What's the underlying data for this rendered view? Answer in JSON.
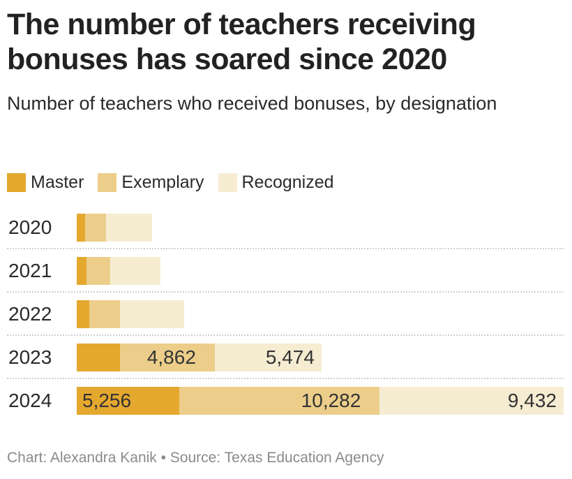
{
  "header": {
    "title": "The number of teachers receiving bonuses has soared since 2020",
    "subtitle": "Number of teachers who received bonuses, by designation"
  },
  "legend": [
    {
      "label": "Master",
      "color": "#e5a82e"
    },
    {
      "label": "Exemplary",
      "color": "#ecce8a"
    },
    {
      "label": "Recognized",
      "color": "#f5ecd2"
    }
  ],
  "footer": {
    "credit": "Chart: Alexandra Kanik • Source: Texas Education Agency"
  },
  "rows": [
    {
      "year": "2020",
      "labels": [
        "",
        "",
        ""
      ]
    },
    {
      "year": "2021",
      "labels": [
        "",
        "",
        ""
      ]
    },
    {
      "year": "2022",
      "labels": [
        "",
        "",
        ""
      ]
    },
    {
      "year": "2023",
      "labels": [
        "",
        "4,862",
        "5,474"
      ]
    },
    {
      "year": "2024",
      "labels": [
        "5,256",
        "10,282",
        "9,432"
      ]
    }
  ],
  "chart_data": {
    "type": "bar",
    "orientation": "horizontal",
    "stacked": true,
    "title": "The number of teachers receiving bonuses has soared since 2020",
    "subtitle": "Number of teachers who received bonuses, by designation",
    "categories": [
      "2020",
      "2021",
      "2022",
      "2023",
      "2024"
    ],
    "series": [
      {
        "name": "Master",
        "color": "#e5a82e",
        "values": [
          429,
          501,
          644,
          2218,
          5256
        ]
      },
      {
        "name": "Exemplary",
        "color": "#ecce8a",
        "values": [
          1073,
          1216,
          1574,
          4862,
          10282
        ]
      },
      {
        "name": "Recognized",
        "color": "#f5ecd2",
        "values": [
          2361,
          2576,
          3291,
          5474,
          9432
        ]
      }
    ],
    "data_labels": {
      "2023": {
        "Exemplary": "4,862",
        "Recognized": "5,474"
      },
      "2024": {
        "Master": "5,256",
        "Exemplary": "10,282",
        "Recognized": "9,432"
      }
    },
    "xlabel": "",
    "ylabel": "",
    "xlim": [
      0,
      24970
    ],
    "grid": false,
    "row_dividers": "dotted",
    "legend_position": "top-left",
    "source": "Chart: Alexandra Kanik • Source: Texas Education Agency"
  }
}
